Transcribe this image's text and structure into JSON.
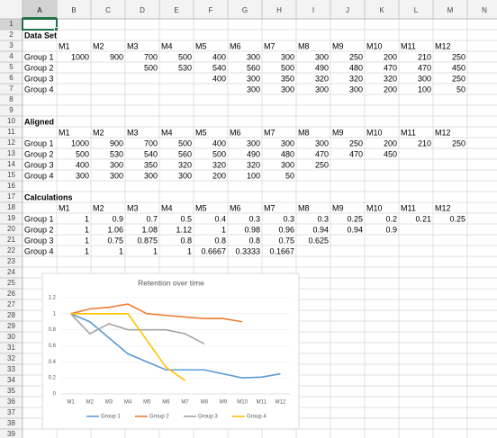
{
  "sheet": {
    "columns": [
      "A",
      "B",
      "C",
      "D",
      "E",
      "F",
      "G",
      "H",
      "I",
      "J",
      "K",
      "L",
      "M",
      "N"
    ],
    "row_numbers": [
      1,
      2,
      3,
      4,
      5,
      6,
      7,
      8,
      9,
      10,
      11,
      12,
      13,
      14,
      15,
      16,
      17,
      18,
      19,
      20,
      21,
      22,
      23,
      24,
      25,
      26,
      27,
      28,
      29,
      30,
      31,
      32,
      33,
      34,
      35,
      36,
      37,
      38,
      39
    ],
    "rows": [
      [],
      [
        "Data Set"
      ],
      [
        null,
        "M1",
        "M2",
        "M3",
        "M4",
        "M5",
        "M6",
        "M7",
        "M8",
        "M9",
        "M10",
        "M11",
        "M12"
      ],
      [
        "Group 1",
        1000,
        900,
        700,
        500,
        400,
        300,
        300,
        300,
        250,
        200,
        210,
        250
      ],
      [
        "Group 2",
        null,
        null,
        500,
        530,
        540,
        560,
        500,
        490,
        480,
        470,
        470,
        450
      ],
      [
        "Group 3",
        null,
        null,
        null,
        null,
        400,
        300,
        350,
        320,
        320,
        320,
        300,
        250
      ],
      [
        "Group 4",
        null,
        null,
        null,
        null,
        null,
        300,
        300,
        300,
        300,
        200,
        100,
        50
      ],
      [],
      [],
      [
        "Aligned"
      ],
      [
        null,
        "M1",
        "M2",
        "M3",
        "M4",
        "M5",
        "M6",
        "M7",
        "M8",
        "M9",
        "M10",
        "M11",
        "M12"
      ],
      [
        "Group 1",
        1000,
        900,
        700,
        500,
        400,
        300,
        300,
        300,
        250,
        200,
        210,
        250
      ],
      [
        "Group 2",
        500,
        530,
        540,
        560,
        500,
        490,
        480,
        470,
        470,
        450
      ],
      [
        "Group 3",
        400,
        300,
        350,
        320,
        320,
        320,
        300,
        250
      ],
      [
        "Group 4",
        300,
        300,
        300,
        300,
        200,
        100,
        50
      ],
      [],
      [
        "Calculations"
      ],
      [
        null,
        "M1",
        "M2",
        "M3",
        "M4",
        "M5",
        "M6",
        "M7",
        "M8",
        "M9",
        "M10",
        "M11",
        "M12"
      ],
      [
        "Group 1",
        1,
        0.9,
        0.7,
        0.5,
        0.4,
        0.3,
        0.3,
        0.3,
        0.25,
        0.2,
        0.21,
        0.25
      ],
      [
        "Group 2",
        1,
        1.06,
        1.08,
        1.12,
        1,
        0.98,
        0.96,
        0.94,
        0.94,
        0.9
      ],
      [
        "Group 3",
        1,
        0.75,
        0.875,
        0.8,
        0.8,
        0.8,
        0.75,
        0.625
      ],
      [
        "Group 4",
        1,
        1,
        1,
        1,
        0.6667,
        0.3333,
        0.1667
      ],
      [],
      [],
      [],
      [],
      [],
      [],
      [],
      [],
      [],
      [],
      [],
      [],
      [],
      [],
      [],
      [],
      []
    ]
  },
  "chart_data": {
    "type": "line",
    "title": "Retention over time",
    "categories": [
      "M1",
      "M2",
      "M3",
      "M4",
      "M5",
      "M6",
      "M7",
      "M8",
      "M9",
      "M10",
      "M11",
      "M12"
    ],
    "series": [
      {
        "name": "Group 1",
        "color": "#5b9bd5",
        "values": [
          1,
          0.9,
          0.7,
          0.5,
          0.4,
          0.3,
          0.3,
          0.3,
          0.25,
          0.2,
          0.21,
          0.25
        ]
      },
      {
        "name": "Group 2",
        "color": "#ed7d31",
        "values": [
          1,
          1.06,
          1.08,
          1.12,
          1,
          0.98,
          0.96,
          0.94,
          0.94,
          0.9,
          null,
          null
        ]
      },
      {
        "name": "Group 3",
        "color": "#a5a5a5",
        "values": [
          1,
          0.75,
          0.875,
          0.8,
          0.8,
          0.8,
          0.75,
          0.625,
          null,
          null,
          null,
          null
        ]
      },
      {
        "name": "Group 4",
        "color": "#ffc000",
        "values": [
          1,
          1,
          1,
          1,
          0.6667,
          0.3333,
          0.1667,
          null,
          null,
          null,
          null,
          null
        ]
      }
    ],
    "ylim": [
      0,
      1.2
    ],
    "yticks": [
      0,
      0.2,
      0.4,
      0.6,
      0.8,
      1,
      1.2
    ],
    "grid": true,
    "legend": "bottom"
  }
}
